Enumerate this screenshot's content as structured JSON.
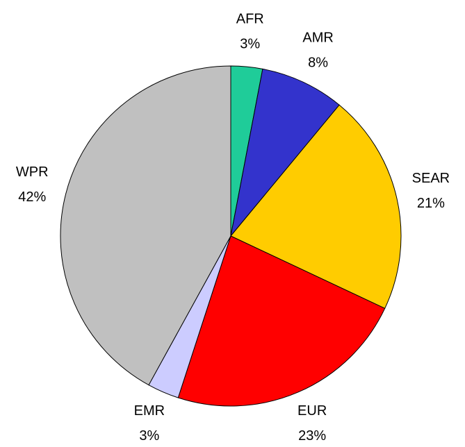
{
  "chart_data": {
    "type": "pie",
    "categories": [
      "AFR",
      "AMR",
      "SEAR",
      "EUR",
      "EMR",
      "WPR"
    ],
    "values": [
      3,
      8,
      21,
      23,
      3,
      42
    ],
    "value_labels": [
      "3%",
      "8%",
      "21%",
      "23%",
      "3%",
      "42%"
    ],
    "colors": [
      "#1fcc99",
      "#3333cc",
      "#ffcc00",
      "#ff0000",
      "#ccccff",
      "#c0c0c0"
    ]
  }
}
